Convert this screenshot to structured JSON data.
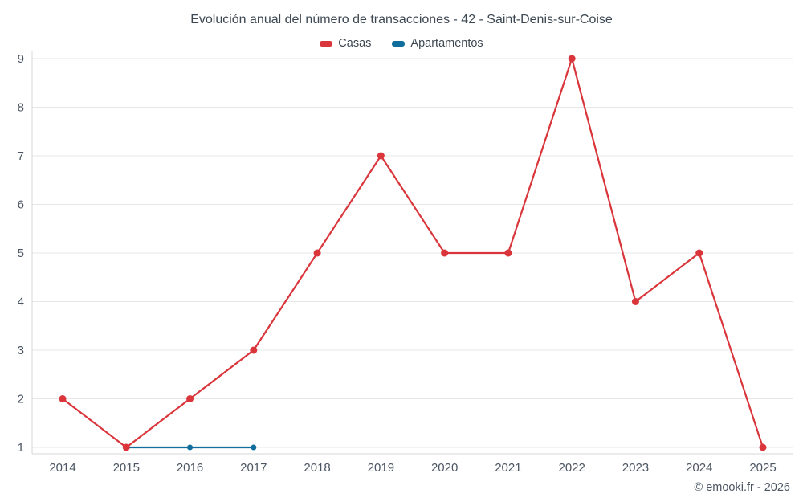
{
  "header": {
    "title": "Evolución anual del número de transacciones - 42 - Saint-Denis-sur-Coise"
  },
  "legend": {
    "items": [
      {
        "label": "Casas",
        "color": "#d9353a"
      },
      {
        "label": "Apartamentos",
        "color": "#0f6e9c"
      }
    ]
  },
  "footer": {
    "credit": "© emooki.fr - 2026"
  },
  "chart_data": {
    "type": "line",
    "title": "Evolución anual del número de transacciones - 42 - Saint-Denis-sur-Coise",
    "x_ticks": [
      2014,
      2015,
      2016,
      2017,
      2018,
      2019,
      2020,
      2021,
      2022,
      2023,
      2024,
      2025
    ],
    "yticks": [
      1,
      2,
      3,
      4,
      5,
      6,
      7,
      8,
      9
    ],
    "ylim": [
      1,
      9
    ],
    "grid": true,
    "legend_position": "top",
    "series": [
      {
        "name": "Casas",
        "color": "#d9353a",
        "marker_radius": 4.5,
        "x": [
          2014,
          2015,
          2016,
          2017,
          2018,
          2019,
          2020,
          2021,
          2022,
          2023,
          2024,
          2025
        ],
        "values": [
          2,
          1,
          2,
          3,
          5,
          7,
          5,
          5,
          9,
          4,
          5,
          1
        ]
      },
      {
        "name": "Apartamentos",
        "color": "#0f6e9c",
        "marker_radius": 3.5,
        "x": [
          2015,
          2016,
          2017
        ],
        "values": [
          1,
          1,
          1
        ]
      }
    ],
    "footer": "© emooki.fr - 2026"
  }
}
